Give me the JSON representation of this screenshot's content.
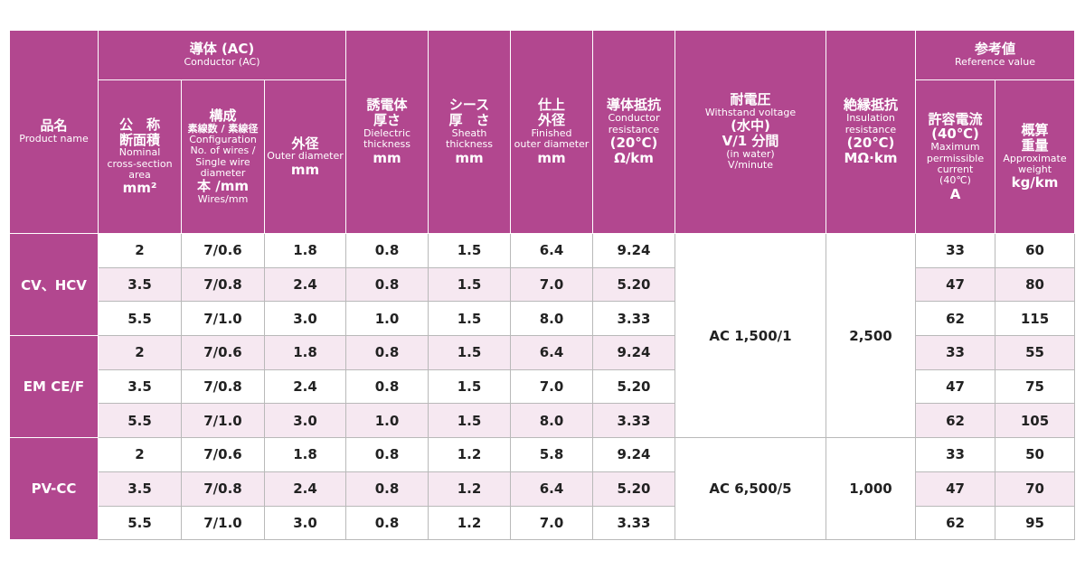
{
  "header": {
    "product": [
      "品名",
      "Product name"
    ],
    "conductor": [
      "導体 (AC)",
      "Conductor (AC)"
    ],
    "area": [
      "公　称",
      "断面積",
      "Nominal",
      "cross-section",
      "area",
      "mm²"
    ],
    "configuration": [
      "構成",
      "素線数 / 素線径",
      "Configuration",
      "No. of wires /",
      "Single wire",
      "diameter",
      "本 /mm",
      "Wires/mm"
    ],
    "outer_diameter": [
      "外径",
      "Outer diameter",
      "mm"
    ],
    "dielectric": [
      "誘電体",
      "厚さ",
      "Dielectric",
      "thickness",
      "mm"
    ],
    "sheath": [
      "シース",
      "厚　さ",
      "Sheath",
      "thickness",
      "mm"
    ],
    "finished": [
      "仕上",
      "外径",
      "Finished",
      "outer diameter",
      "mm"
    ],
    "resistance": [
      "導体抵抗",
      "Conductor",
      "resistance",
      "(20℃)",
      "Ω/km"
    ],
    "withstand": [
      "耐電圧",
      "Withstand voltage",
      "(水中)",
      "V/1 分間",
      "(in water)",
      "V/minute"
    ],
    "insulation": [
      "絶縁抵抗",
      "Insulation",
      "resistance",
      "(20℃)",
      "MΩ·km"
    ],
    "reference": [
      "参考値",
      "Reference value"
    ],
    "current": [
      "許容電流",
      "(40℃)",
      "Maximum",
      "permissible",
      "current",
      "(40℃)",
      "A"
    ],
    "weight": [
      "概算",
      "重量",
      "Approximate",
      "weight",
      "kg/km"
    ]
  },
  "groups": [
    {
      "name": "CV、HCV",
      "rows": [
        [
          "2",
          "7/0.6",
          "1.8",
          "0.8",
          "1.5",
          "6.4",
          "9.24",
          "33",
          "60"
        ],
        [
          "3.5",
          "7/0.8",
          "2.4",
          "0.8",
          "1.5",
          "7.0",
          "5.20",
          "47",
          "80"
        ],
        [
          "5.5",
          "7/1.0",
          "3.0",
          "1.0",
          "1.5",
          "8.0",
          "3.33",
          "62",
          "115"
        ]
      ]
    },
    {
      "name": "EM CE/F",
      "rows": [
        [
          "2",
          "7/0.6",
          "1.8",
          "0.8",
          "1.5",
          "6.4",
          "9.24",
          "33",
          "55"
        ],
        [
          "3.5",
          "7/0.8",
          "2.4",
          "0.8",
          "1.5",
          "7.0",
          "5.20",
          "47",
          "75"
        ],
        [
          "5.5",
          "7/1.0",
          "3.0",
          "1.0",
          "1.5",
          "8.0",
          "3.33",
          "62",
          "105"
        ]
      ]
    },
    {
      "name": "PV-CC",
      "rows": [
        [
          "2",
          "7/0.6",
          "1.8",
          "0.8",
          "1.2",
          "5.8",
          "9.24",
          "33",
          "50"
        ],
        [
          "3.5",
          "7/0.8",
          "2.4",
          "0.8",
          "1.2",
          "6.4",
          "5.20",
          "47",
          "70"
        ],
        [
          "5.5",
          "7/1.0",
          "3.0",
          "0.8",
          "1.2",
          "7.0",
          "3.33",
          "62",
          "95"
        ]
      ]
    }
  ],
  "tests": [
    {
      "withstand_voltage": "AC 1,500/1",
      "insulation_resistance": "2,500"
    },
    {
      "withstand_voltage": "AC 6,500/5",
      "insulation_resistance": "1,000"
    }
  ]
}
